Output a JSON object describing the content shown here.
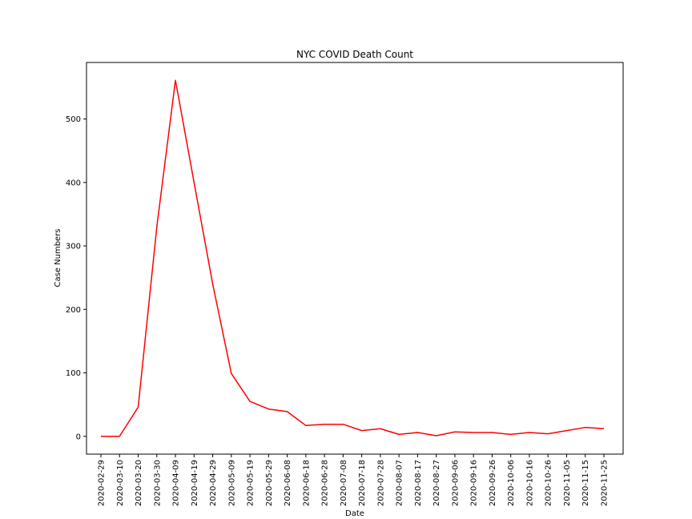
{
  "chart_data": {
    "type": "line",
    "title": "NYC COVID Death Count",
    "xlabel": "Date",
    "ylabel": "Case Numbers",
    "categories": [
      "2020-02-29",
      "2020-03-10",
      "2020-03-20",
      "2020-03-30",
      "2020-04-09",
      "2020-04-19",
      "2020-04-29",
      "2020-05-09",
      "2020-05-19",
      "2020-05-29",
      "2020-06-08",
      "2020-06-18",
      "2020-06-28",
      "2020-07-08",
      "2020-07-18",
      "2020-07-28",
      "2020-08-07",
      "2020-08-17",
      "2020-08-27",
      "2020-09-06",
      "2020-09-16",
      "2020-09-26",
      "2020-10-06",
      "2020-10-16",
      "2020-10-26",
      "2020-11-05",
      "2020-11-15",
      "2020-11-25"
    ],
    "series": [
      {
        "name": "",
        "color": "#ff0000",
        "values": [
          0,
          0,
          46,
          330,
          561,
          400,
          240,
          99,
          55,
          43,
          39,
          17,
          19,
          19,
          9,
          12,
          3,
          6,
          1,
          7,
          6,
          6,
          3,
          6,
          4,
          9,
          14,
          12
        ]
      }
    ],
    "ylim": [
      -28.05,
      589.05
    ],
    "yticks": [
      0,
      100,
      200,
      300,
      400,
      500
    ],
    "grid": false,
    "legend": "none"
  }
}
